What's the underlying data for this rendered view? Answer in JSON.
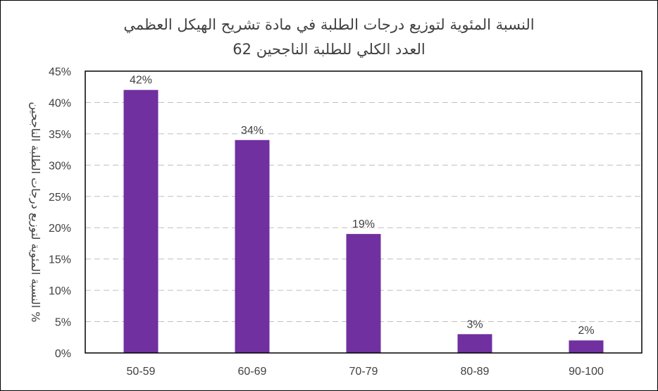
{
  "chart_data": {
    "type": "bar",
    "title": "النسبة المئوية لتوزيع درجات الطلبة في مادة تشريح الهيكل العظمي",
    "subtitle": "العدد الكلي للطلبة الناجحين 62",
    "xlabel": "",
    "ylabel": "% النسبة المئوية لتوزيع درجات الطلبة الناجحين",
    "categories": [
      "50-59",
      "60-69",
      "70-79",
      "80-89",
      "90-100"
    ],
    "values": [
      0.42,
      0.34,
      0.19,
      0.03,
      0.02
    ],
    "data_labels": [
      "42%",
      "34%",
      "19%",
      "3%",
      "2%"
    ],
    "ylim": [
      0,
      0.45
    ],
    "yticks": [
      0,
      0.05,
      0.1,
      0.15,
      0.2,
      0.25,
      0.3,
      0.35,
      0.4,
      0.45
    ],
    "ytick_labels": [
      "0%",
      "5%",
      "10%",
      "15%",
      "20%",
      "25%",
      "30%",
      "35%",
      "40%",
      "45%"
    ],
    "grid": true,
    "legend": "none",
    "bar_color": "#7030A0",
    "axis_color": "#000000",
    "grid_color": "#BFBFBF"
  }
}
